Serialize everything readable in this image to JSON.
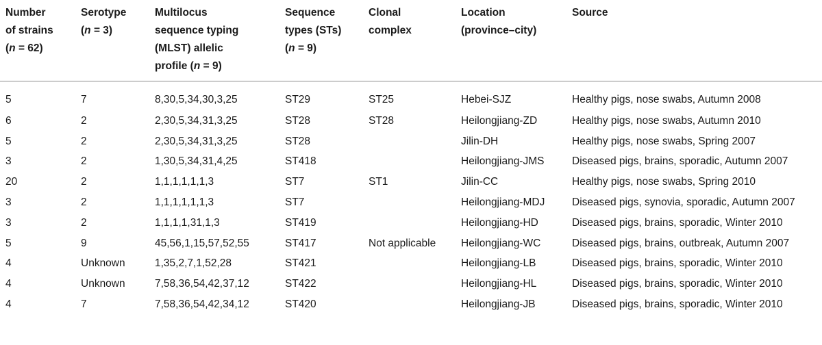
{
  "table": {
    "headers": [
      {
        "line1": "Number",
        "line2": "of strains",
        "line3_pre": "(",
        "line3_n": "n",
        "line3_post": " = 62)",
        "line4": ""
      },
      {
        "line1": "Serotype",
        "line2_pre": "(",
        "line2_n": "n",
        "line2_post": " = 3)"
      },
      {
        "line1": "Multilocus",
        "line2": "sequence typing",
        "line3": "(MLST) allelic",
        "line4_pre": "profile (",
        "line4_n": "n",
        "line4_post": " = 9)"
      },
      {
        "line1": "Sequence",
        "line2": "types (STs)",
        "line3_pre": "(",
        "line3_n": "n",
        "line3_post": " = 9)"
      },
      {
        "line1": "Clonal",
        "line2": "complex"
      },
      {
        "line1": "Location",
        "line2": "(province–city)"
      },
      {
        "line1": "Source"
      }
    ],
    "rows": [
      [
        "5",
        "7",
        "8,30,5,34,30,3,25",
        "ST29",
        "ST25",
        "Hebei-SJZ",
        "Healthy pigs, nose swabs, Autumn 2008"
      ],
      [
        "6",
        "2",
        "2,30,5,34,31,3,25",
        "ST28",
        "ST28",
        "Heilongjiang-ZD",
        "Healthy pigs, nose swabs, Autumn 2010"
      ],
      [
        "5",
        "2",
        "2,30,5,34,31,3,25",
        "ST28",
        "",
        "Jilin-DH",
        "Healthy pigs, nose swabs, Spring 2007"
      ],
      [
        "3",
        "2",
        "1,30,5,34,31,4,25",
        "ST418",
        "",
        "Heilongjiang-JMS",
        "Diseased pigs, brains, sporadic, Autumn 2007"
      ],
      [
        "20",
        "2",
        "1,1,1,1,1,1,3",
        "ST7",
        "ST1",
        "Jilin-CC",
        "Healthy pigs, nose swabs, Spring 2010"
      ],
      [
        "3",
        "2",
        "1,1,1,1,1,1,3",
        "ST7",
        "",
        "Heilongjiang-MDJ",
        "Diseased pigs, synovia, sporadic, Autumn 2007"
      ],
      [
        "3",
        "2",
        "1,1,1,1,31,1,3",
        "ST419",
        "",
        "Heilongjiang-HD",
        "Diseased pigs, brains, sporadic, Winter 2010"
      ],
      [
        "5",
        "9",
        "45,56,1,15,57,52,55",
        "ST417",
        "Not applicable",
        "Heilongjiang-WC",
        "Diseased pigs, brains, outbreak, Autumn 2007"
      ],
      [
        "4",
        "Unknown",
        "1,35,2,7,1,52,28",
        "ST421",
        "",
        "Heilongjiang-LB",
        "Diseased pigs, brains, sporadic, Winter 2010"
      ],
      [
        "4",
        "Unknown",
        "7,58,36,54,42,37,12",
        "ST422",
        "",
        "Heilongjiang-HL",
        "Diseased pigs, brains, sporadic, Winter 2010"
      ],
      [
        "4",
        "7",
        "7,58,36,54,42,34,12",
        "ST420",
        "",
        "Heilongjiang-JB",
        "Diseased pigs, brains, sporadic, Winter 2010"
      ]
    ]
  }
}
